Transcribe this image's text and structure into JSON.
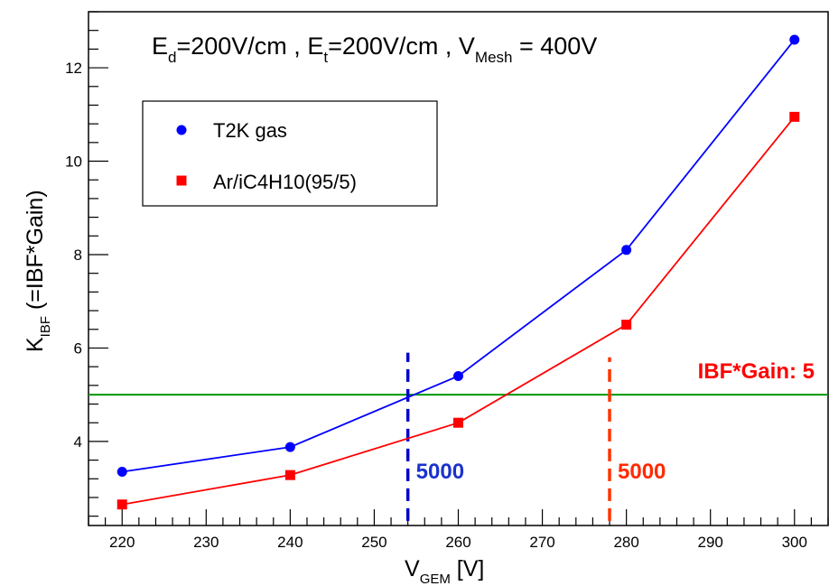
{
  "chart_data": {
    "type": "line",
    "title": {
      "ed_main": "E",
      "ed_sub": "d",
      "ed_rest": "=200V/cm , ",
      "et_main": "E",
      "et_sub": "t",
      "et_rest": "=200V/cm , ",
      "vm_main": "V",
      "vm_sub": "Mesh",
      "vm_rest": " = 400V"
    },
    "xlabel": {
      "main": "V",
      "sub": "GEM",
      "rest": " [V]"
    },
    "ylabel": {
      "main": "K",
      "sub": "IBF",
      "rest": " (=IBF*Gain)"
    },
    "xlim": [
      216,
      304
    ],
    "ylim": [
      2.2,
      13.2
    ],
    "xticks": [
      220,
      230,
      240,
      250,
      260,
      270,
      280,
      290,
      300
    ],
    "yticks": [
      4,
      6,
      8,
      10,
      12
    ],
    "series": [
      {
        "name": "T2K gas",
        "color": "#0000ff",
        "marker": "circle",
        "x": [
          220,
          240,
          260,
          280,
          300
        ],
        "y": [
          3.35,
          3.88,
          5.4,
          8.1,
          12.6
        ]
      },
      {
        "name": "Ar/iC4H10(95/5)",
        "color": "#ff0000",
        "marker": "square",
        "x": [
          220,
          240,
          260,
          280,
          300
        ],
        "y": [
          2.65,
          3.28,
          4.4,
          6.5,
          10.95
        ]
      }
    ],
    "hline": {
      "y": 5,
      "color": "#009900",
      "label": "IBF*Gain: 5",
      "label_color": "#ff0000"
    },
    "vlines": [
      {
        "x": 254,
        "y_from": 2.3,
        "y_to": 5.9,
        "color": "#0000cc",
        "label": "5000",
        "label_color": "#1a33cc"
      },
      {
        "x": 278,
        "y_from": 2.3,
        "y_to": 5.8,
        "color": "#ff3300",
        "label": "5000",
        "label_color": "#ff2a00"
      }
    ],
    "legend_position": "top-left",
    "grid": false
  }
}
